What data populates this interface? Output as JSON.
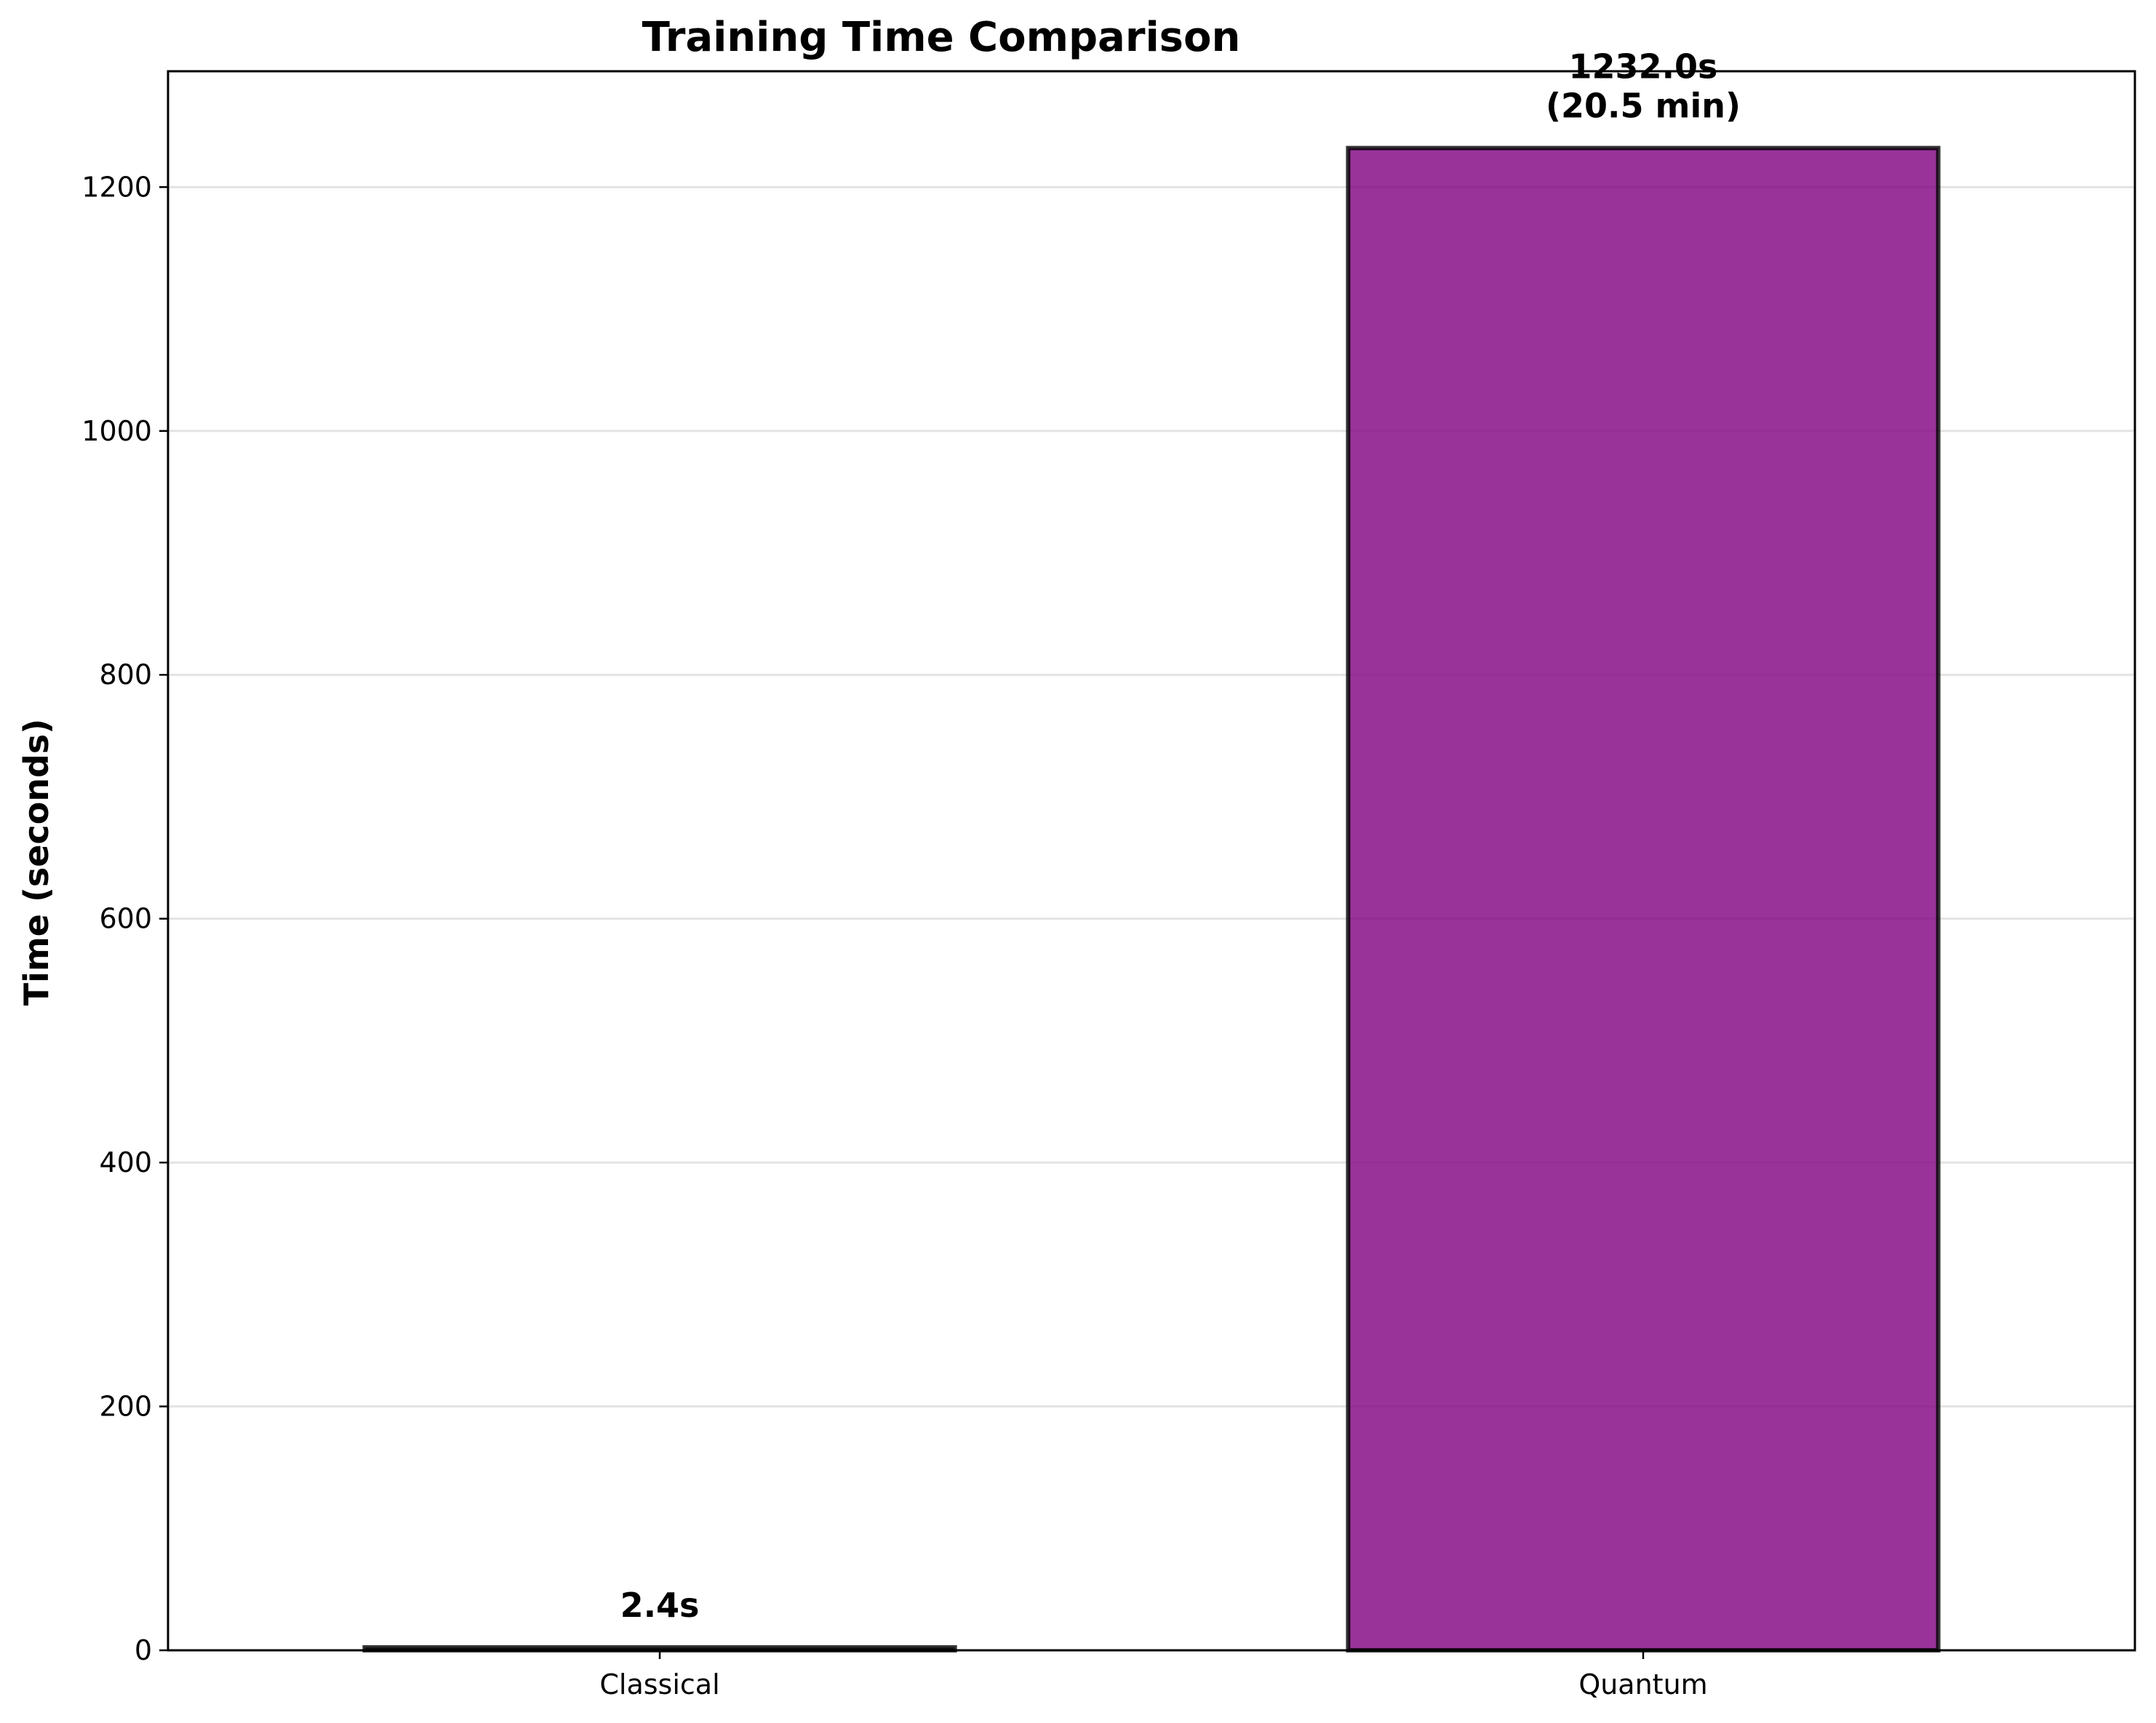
{
  "chart_data": {
    "type": "bar",
    "title": "Training Time Comparison",
    "xlabel": "",
    "ylabel": "Time (seconds)",
    "categories": [
      "Classical",
      "Quantum"
    ],
    "values": [
      2.4,
      1232.0
    ],
    "data_labels": [
      [
        "2.4s"
      ],
      [
        "1232.0s",
        "(20.5 min)"
      ]
    ],
    "colors": [
      "#2f2a1f",
      "#800080"
    ],
    "bar_alpha": 0.8,
    "edge_color": "#000000",
    "ylim": [
      0,
      1295
    ],
    "yticks": [
      0,
      200,
      400,
      600,
      800,
      1000,
      1200
    ],
    "grid": "y",
    "legend": "none"
  }
}
